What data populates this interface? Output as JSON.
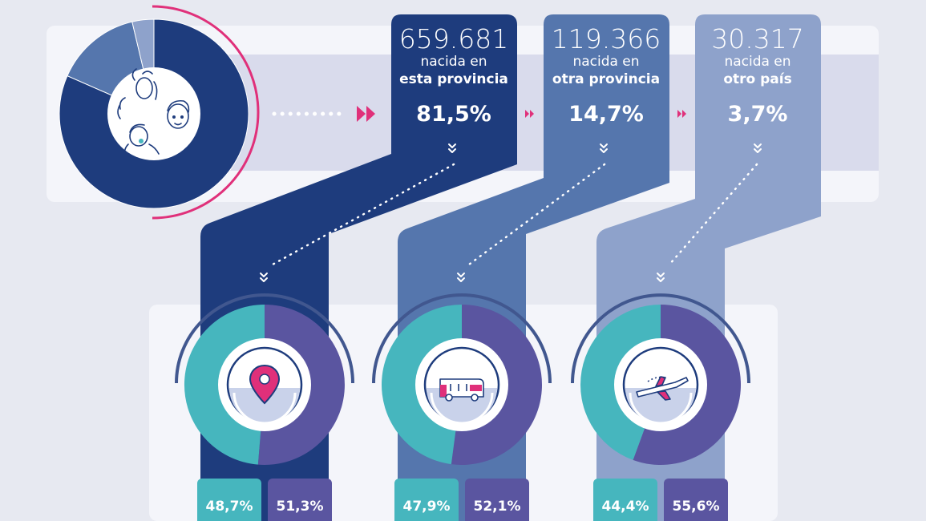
{
  "colors": {
    "background": "#e7e9f1",
    "panel": "#f3f4f9",
    "band": "#d7d9ea",
    "col1": "#1e3c7d",
    "col2": "#5576ad",
    "col3": "#8ea2cb",
    "teal": "#46b6be",
    "purple": "#5a55a0",
    "pink": "#e0307a",
    "white": "#ffffff"
  },
  "chart_data": [
    {
      "type": "pie",
      "categories": [
        "nacida en esta provincia",
        "nacida en otra provincia",
        "nacida en otro país"
      ],
      "values": [
        81.5,
        14.7,
        3.7
      ],
      "icon": "people-faces-icon"
    },
    {
      "type": "table",
      "columns": [
        {
          "count": "659.681",
          "line1": "nacida en",
          "line2": "esta provincia",
          "pct": "81,5%"
        },
        {
          "count": "119.366",
          "line1": "nacida en",
          "line2": "otra provincia",
          "pct": "14,7%"
        },
        {
          "count": "30.317",
          "line1": "nacida en",
          "line2": "otro país",
          "pct": "3,7%"
        }
      ]
    },
    {
      "type": "pie",
      "values": [
        48.7,
        51.3
      ],
      "labels": [
        "48,7%",
        "51,3%"
      ],
      "icon": "location-pin-icon"
    },
    {
      "type": "pie",
      "values": [
        47.9,
        52.1
      ],
      "labels": [
        "47,9%",
        "52,1%"
      ],
      "icon": "bus-icon"
    },
    {
      "type": "pie",
      "values": [
        44.4,
        55.6
      ],
      "labels": [
        "44,4%",
        "55,6%"
      ],
      "icon": "airplane-icon"
    }
  ]
}
